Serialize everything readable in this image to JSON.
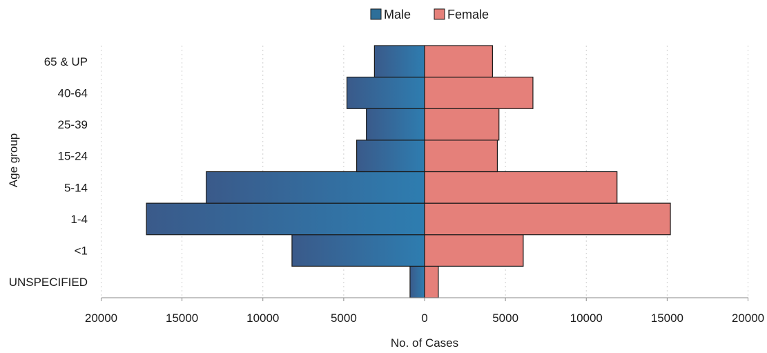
{
  "chart_data": {
    "type": "bar",
    "orientation": "horizontal",
    "subtype": "population-pyramid",
    "categories": [
      "UNSPECIFIED",
      "<1",
      "1-4",
      "5-14",
      "15-24",
      "25-39",
      "40-64",
      "65 & UP"
    ],
    "series": [
      {
        "name": "Male",
        "values": [
          900,
          8200,
          17200,
          13500,
          4200,
          3600,
          4800,
          3100
        ],
        "color": "#2e6f99",
        "side": "left"
      },
      {
        "name": "Female",
        "values": [
          850,
          6100,
          15200,
          11900,
          4500,
          4600,
          6700,
          4200
        ],
        "color": "#e5807a",
        "side": "right"
      }
    ],
    "xlabel": "No. of Cases",
    "ylabel": "Age group",
    "xlim": [
      -20000,
      20000
    ],
    "xticks": [
      {
        "value": -20000,
        "label": "20000"
      },
      {
        "value": -15000,
        "label": "15000"
      },
      {
        "value": -10000,
        "label": "10000"
      },
      {
        "value": -5000,
        "label": "5000"
      },
      {
        "value": 0,
        "label": "0"
      },
      {
        "value": 5000,
        "label": "5000"
      },
      {
        "value": 10000,
        "label": "10000"
      },
      {
        "value": 15000,
        "label": "15000"
      },
      {
        "value": 20000,
        "label": "20000"
      }
    ],
    "grid": "vertical-dotted",
    "legend": "top-center"
  }
}
